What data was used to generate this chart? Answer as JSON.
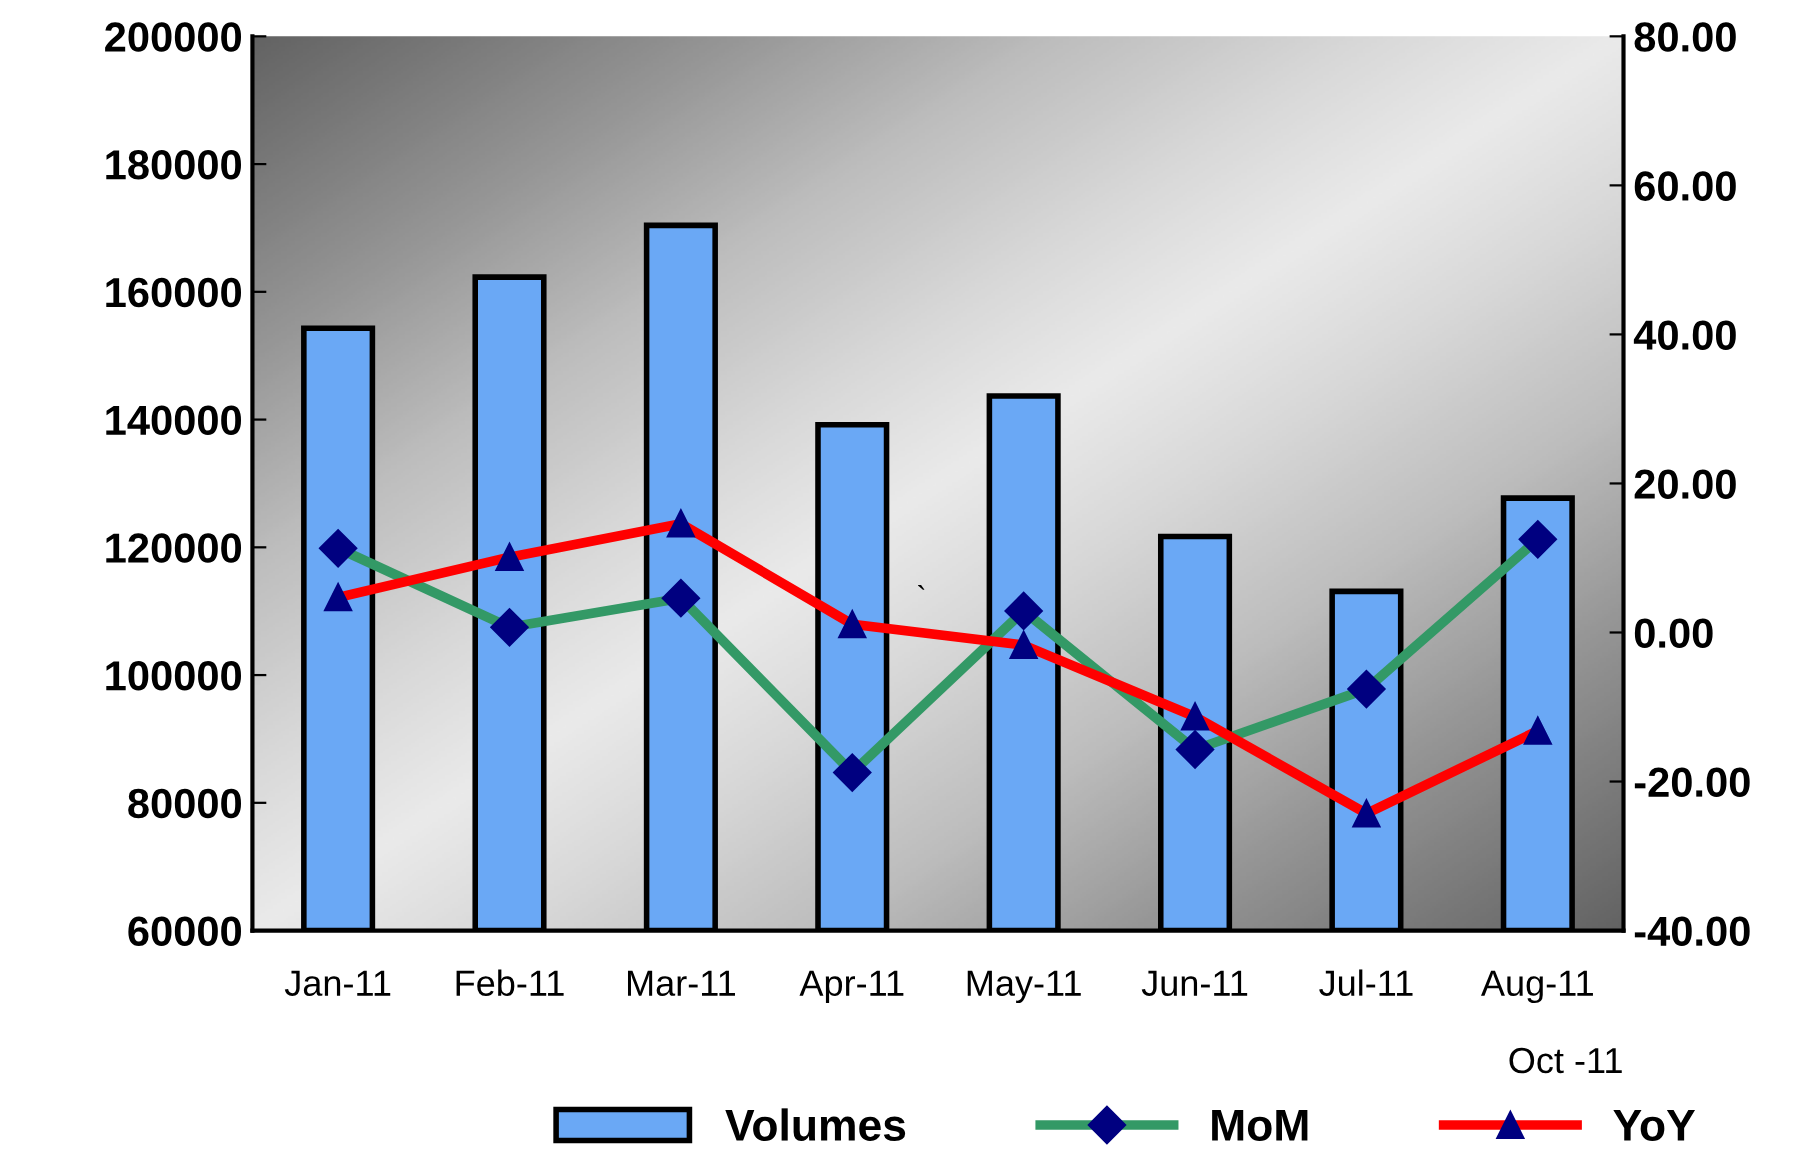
{
  "chart_data": {
    "type": "bar",
    "categories": [
      "Jan-11",
      "Feb-11",
      "Mar-11",
      "Apr-11",
      "May-11",
      "Jun-11",
      "Jul-11",
      "Aug-11"
    ],
    "series": [
      {
        "name": "Volumes",
        "color": "#6aa8f5",
        "values": [
          154300,
          162300,
          170400,
          139200,
          143700,
          121700,
          113100,
          127700
        ]
      },
      {
        "name": "MoM",
        "type": "line",
        "axis": "y2",
        "color": "#339966",
        "marker": "diamond",
        "values": [
          11.3,
          0.7,
          4.6,
          -18.8,
          2.9,
          -15.7,
          -7.6,
          12.5
        ]
      },
      {
        "name": "YoY",
        "type": "line",
        "axis": "y2",
        "color": "#ff0000",
        "marker": "triangle",
        "values": [
          4.7,
          10.1,
          14.6,
          1.1,
          -1.7,
          -11.3,
          -24.3,
          -13.2
        ]
      }
    ],
    "ylim": [
      60000,
      200000
    ],
    "yticks": [
      60000,
      80000,
      100000,
      120000,
      140000,
      160000,
      180000,
      200000
    ],
    "y2lim": [
      -40,
      80
    ],
    "y2ticks": [
      {
        "value": -40,
        "label": "-40.00"
      },
      {
        "value": -20,
        "label": "-20.00"
      },
      {
        "value": 0,
        "label": "0.00"
      },
      {
        "value": 20,
        "label": "20.00"
      },
      {
        "value": 40,
        "label": "40.00"
      },
      {
        "value": 60,
        "label": "60.00"
      },
      {
        "value": 80,
        "label": "80.00"
      }
    ],
    "annotations": [
      "Oct -11",
      "`"
    ],
    "legend": "bottom",
    "grid": false
  }
}
